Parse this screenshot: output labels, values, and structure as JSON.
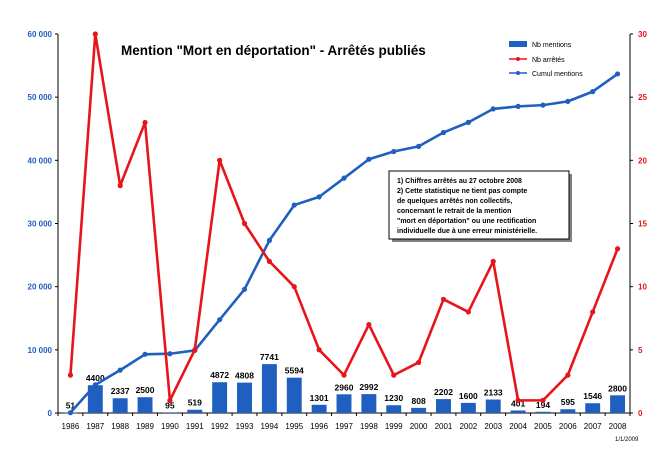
{
  "chart_data": {
    "type": "bar",
    "title": "Mention \"Mort en déportation\" - Arrêtés publiés",
    "categories": [
      "1986",
      "1987",
      "1988",
      "1989",
      "1990",
      "1991",
      "1992",
      "1993",
      "1994",
      "1995",
      "1996",
      "1997",
      "1998",
      "1999",
      "2000",
      "2001",
      "2002",
      "2003",
      "2004",
      "2005",
      "2006",
      "2007",
      "2008"
    ],
    "series": [
      {
        "name": "Nb mentions",
        "type": "bar",
        "axis": "left",
        "color": "#1f5fbf",
        "values": [
          51,
          4400,
          2337,
          2500,
          95,
          519,
          4872,
          4808,
          7741,
          5594,
          1301,
          2960,
          2992,
          1230,
          808,
          2202,
          1600,
          2133,
          401,
          194,
          595,
          1546,
          2800
        ],
        "value_labels": [
          "51",
          "4400",
          "2337",
          "2500",
          "95",
          "519",
          "4872",
          "4808",
          "7741",
          "5594",
          "1301",
          "2960",
          "2992",
          "1230",
          "808",
          "2202",
          "1600",
          "2133",
          "401",
          "194",
          "595",
          "1546",
          "2800"
        ]
      },
      {
        "name": "Nb arrêtés",
        "type": "line",
        "axis": "right",
        "color": "#e8141b",
        "values": [
          3,
          30,
          18,
          23,
          1,
          5,
          20,
          15,
          12,
          10,
          5,
          3,
          7,
          3,
          4,
          9,
          8,
          12,
          1,
          1,
          3,
          8,
          13
        ]
      },
      {
        "name": "Cumul mentions",
        "type": "line",
        "axis": "left",
        "color": "#1f5fbf",
        "values": [
          51,
          4451,
          6788,
          9288,
          9383,
          9902,
          14774,
          19582,
          27323,
          32917,
          34218,
          37178,
          40170,
          41400,
          42208,
          44410,
          46010,
          48143,
          48544,
          48738,
          49333,
          50879,
          53679
        ]
      }
    ],
    "y_left": {
      "ylim": [
        0,
        60000
      ],
      "ticks": [
        0,
        10000,
        20000,
        30000,
        40000,
        50000,
        60000
      ],
      "tick_labels": [
        "0",
        "10 000",
        "20 000",
        "30 000",
        "40 000",
        "50 000",
        "60 000"
      ]
    },
    "y_right": {
      "ylim": [
        0,
        30
      ],
      "ticks": [
        0,
        5,
        10,
        15,
        20,
        25,
        30
      ],
      "tick_labels": [
        "0",
        "5",
        "10",
        "15",
        "20",
        "25",
        "30"
      ]
    },
    "legend": {
      "placement": "top-right",
      "entries": [
        "Nb mentions",
        "Nb arrêtés",
        "Cumul mentions"
      ]
    },
    "annotation": {
      "lines": [
        "1) Chiffres arrêtés au 27 octobre 2008",
        "2) Cette statistique ne tient pas compte",
        "de quelques arrêtés non collectifs,",
        "concernant le retrait de la mention",
        "\"mort en déportation\" ou une rectification",
        "individuelle due à une erreur ministérielle."
      ]
    },
    "footer_date": "1/1/2009",
    "grid": false
  }
}
